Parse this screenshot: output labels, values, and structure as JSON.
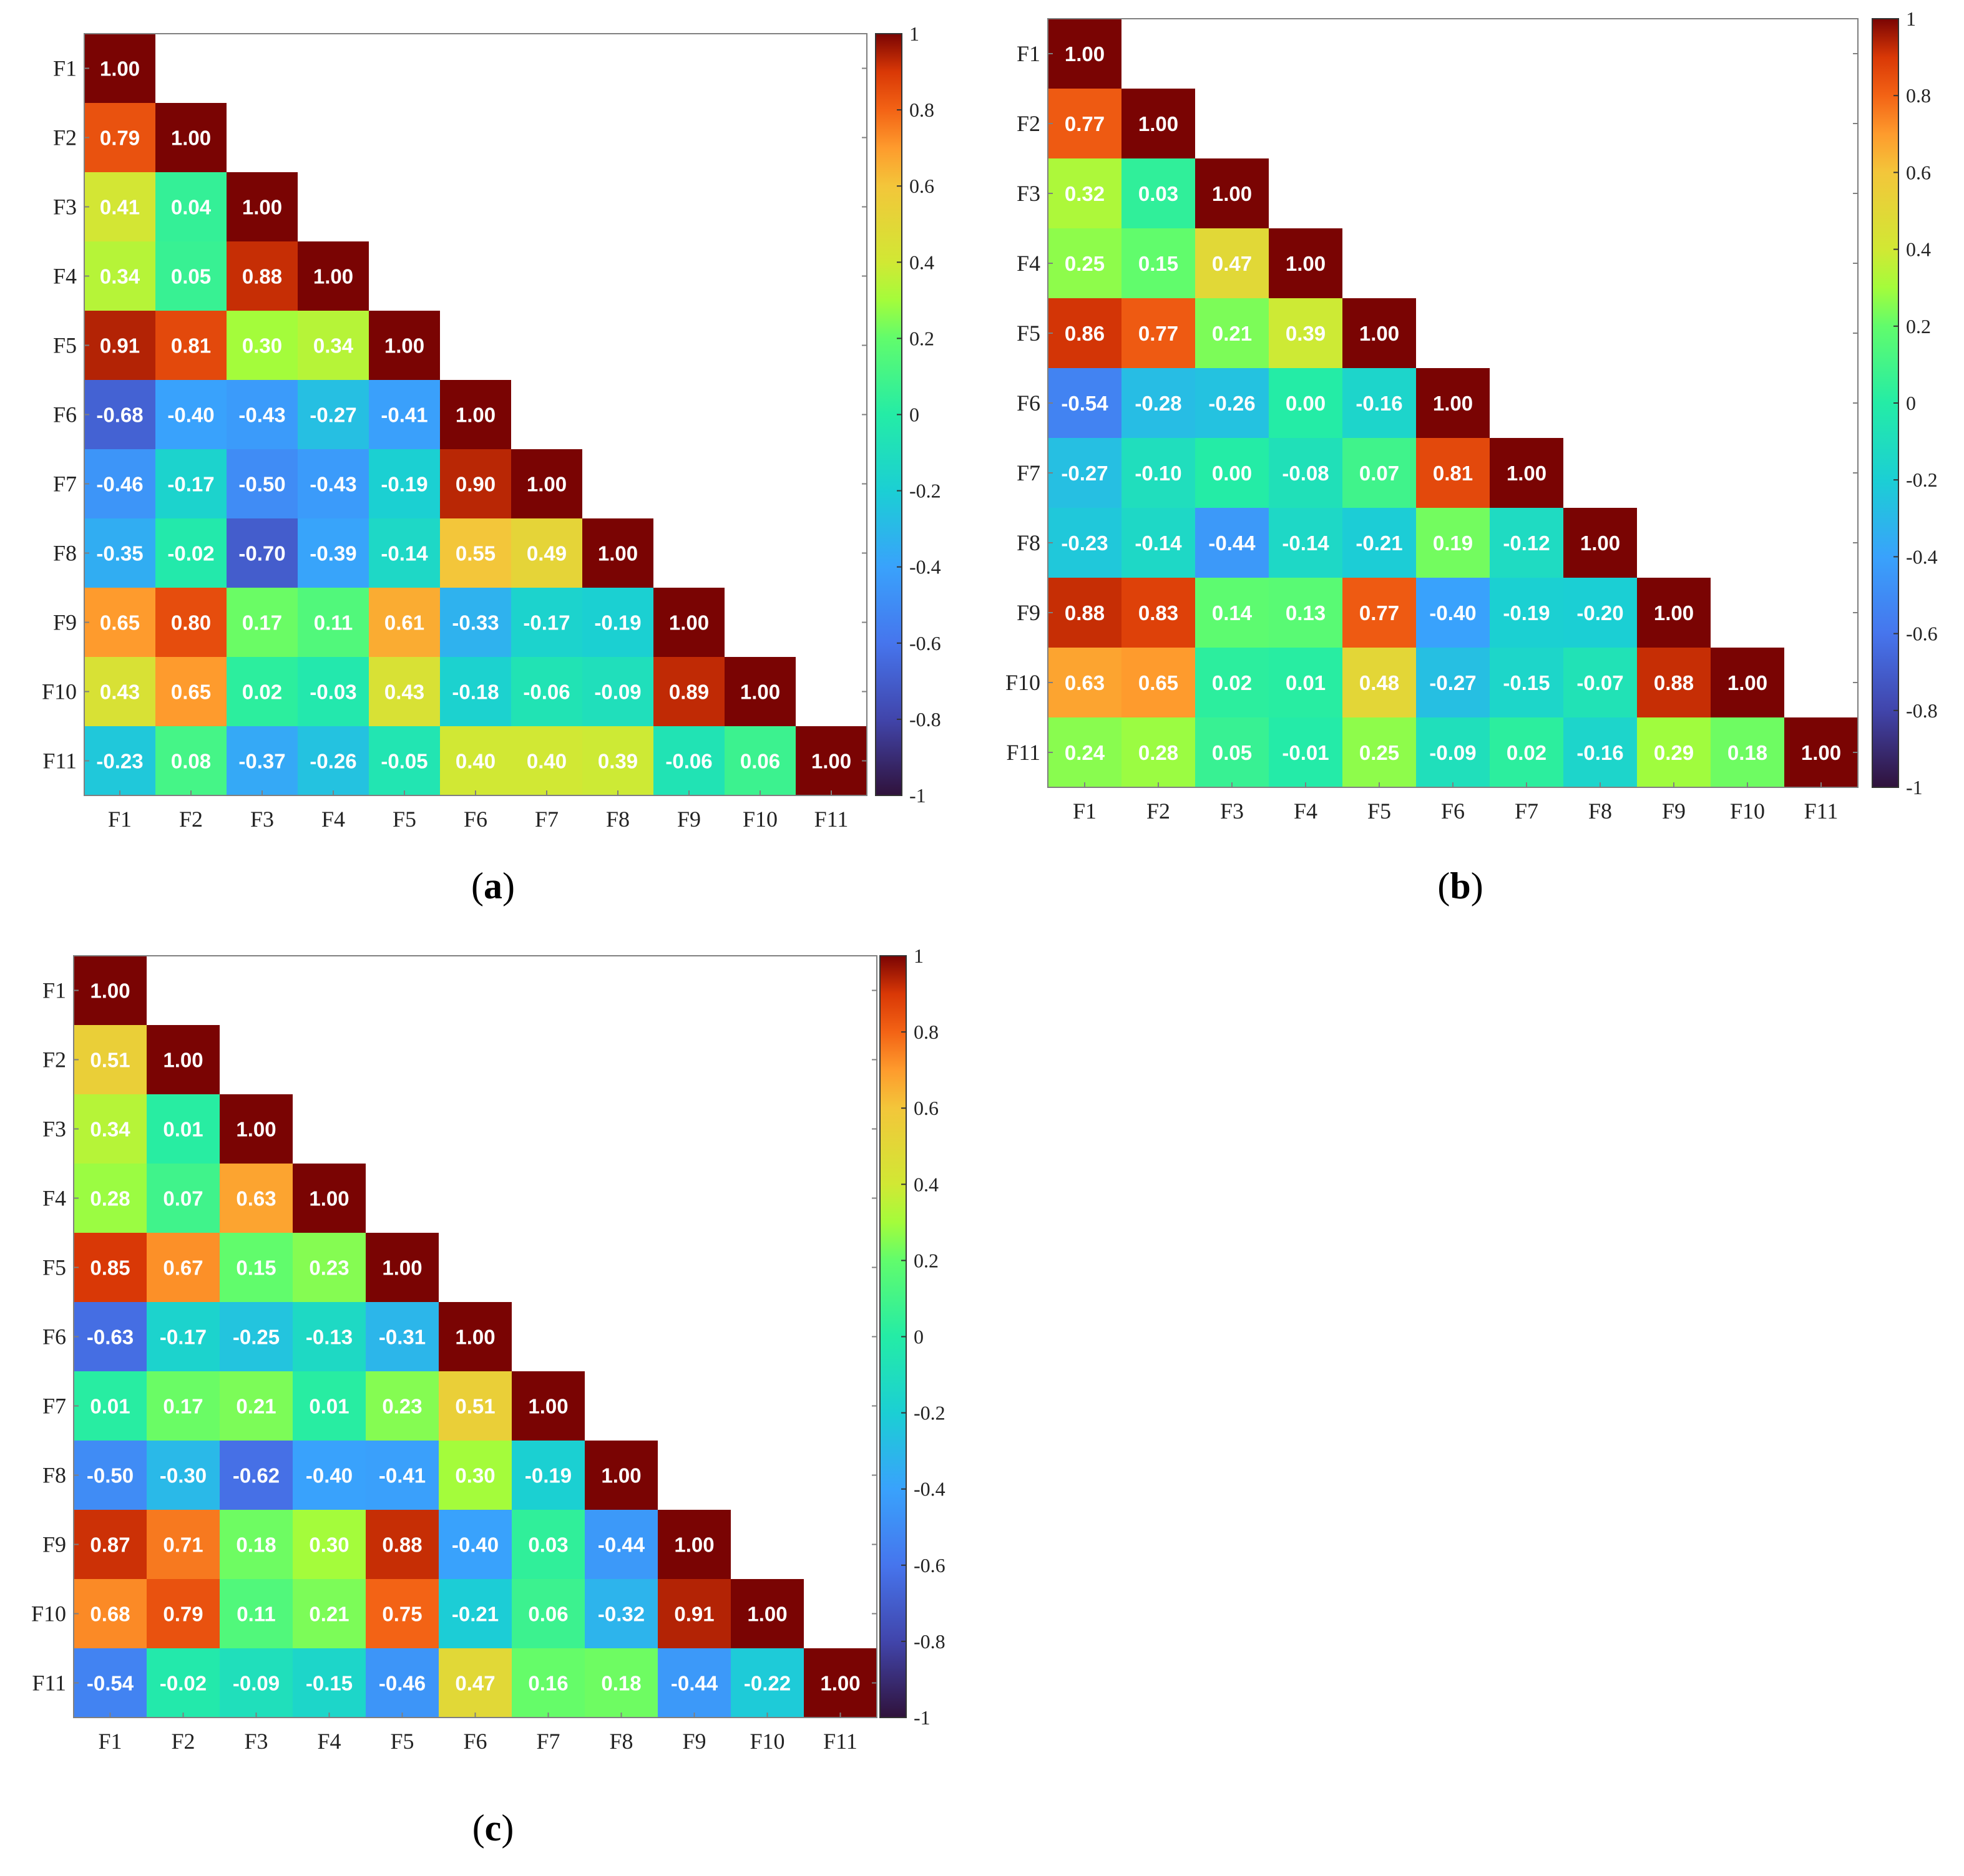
{
  "chart_data": [
    {
      "type": "heatmap",
      "panel_label": "a",
      "variables": [
        "F1",
        "F2",
        "F3",
        "F4",
        "F5",
        "F6",
        "F7",
        "F8",
        "F9",
        "F10",
        "F11"
      ],
      "matrix_lower": [
        [
          "1.00"
        ],
        [
          "0.79",
          "1.00"
        ],
        [
          "0.41",
          "0.04",
          "1.00"
        ],
        [
          "0.34",
          "0.05",
          "0.88",
          "1.00"
        ],
        [
          "0.91",
          "0.81",
          "0.30",
          "0.34",
          "1.00"
        ],
        [
          "-0.68",
          "-0.40",
          "-0.43",
          "-0.27",
          "-0.41",
          "1.00"
        ],
        [
          "-0.46",
          "-0.17",
          "-0.50",
          "-0.43",
          "-0.19",
          "0.90",
          "1.00"
        ],
        [
          "-0.35",
          "-0.02",
          "-0.70",
          "-0.39",
          "-0.14",
          "0.55",
          "0.49",
          "1.00"
        ],
        [
          "0.65",
          "0.80",
          "0.17",
          "0.11",
          "0.61",
          "-0.33",
          "-0.17",
          "-0.19",
          "1.00"
        ],
        [
          "0.43",
          "0.65",
          "0.02",
          "-0.03",
          "0.43",
          "-0.18",
          "-0.06",
          "-0.09",
          "0.89",
          "1.00"
        ],
        [
          "-0.23",
          "0.08",
          "-0.37",
          "-0.26",
          "-0.05",
          "0.40",
          "0.40",
          "0.39",
          "-0.06",
          "0.06",
          "1.00"
        ]
      ],
      "colorbar_ticks": [
        "1",
        "0.8",
        "0.6",
        "0.4",
        "0.2",
        "0",
        "-0.2",
        "-0.4",
        "-0.6",
        "-0.8",
        "-1"
      ],
      "clim": [
        -1,
        1
      ],
      "colormap": "jet-like (dark blue → cyan → green → yellow → orange → dark red)"
    },
    {
      "type": "heatmap",
      "panel_label": "b",
      "variables": [
        "F1",
        "F2",
        "F3",
        "F4",
        "F5",
        "F6",
        "F7",
        "F8",
        "F9",
        "F10",
        "F11"
      ],
      "matrix_lower": [
        [
          "1.00"
        ],
        [
          "0.77",
          "1.00"
        ],
        [
          "0.32",
          "0.03",
          "1.00"
        ],
        [
          "0.25",
          "0.15",
          "0.47",
          "1.00"
        ],
        [
          "0.86",
          "0.77",
          "0.21",
          "0.39",
          "1.00"
        ],
        [
          "-0.54",
          "-0.28",
          "-0.26",
          "0.00",
          "-0.16",
          "1.00"
        ],
        [
          "-0.27",
          "-0.10",
          "0.00",
          "-0.08",
          "0.07",
          "0.81",
          "1.00"
        ],
        [
          "-0.23",
          "-0.14",
          "-0.44",
          "-0.14",
          "-0.21",
          "0.19",
          "-0.12",
          "1.00"
        ],
        [
          "0.88",
          "0.83",
          "0.14",
          "0.13",
          "0.77",
          "-0.40",
          "-0.19",
          "-0.20",
          "1.00"
        ],
        [
          "0.63",
          "0.65",
          "0.02",
          "0.01",
          "0.48",
          "-0.27",
          "-0.15",
          "-0.07",
          "0.88",
          "1.00"
        ],
        [
          "0.24",
          "0.28",
          "0.05",
          "-0.01",
          "0.25",
          "-0.09",
          "0.02",
          "-0.16",
          "0.29",
          "0.18",
          "1.00"
        ]
      ],
      "colorbar_ticks": [
        "1",
        "0.8",
        "0.6",
        "0.4",
        "0.2",
        "0",
        "-0.2",
        "-0.4",
        "-0.6",
        "-0.8",
        "-1"
      ],
      "clim": [
        -1,
        1
      ],
      "colormap": "jet-like (dark blue → cyan → green → yellow → orange → dark red)"
    },
    {
      "type": "heatmap",
      "panel_label": "c",
      "variables": [
        "F1",
        "F2",
        "F3",
        "F4",
        "F5",
        "F6",
        "F7",
        "F8",
        "F9",
        "F10",
        "F11"
      ],
      "matrix_lower": [
        [
          "1.00"
        ],
        [
          "0.51",
          "1.00"
        ],
        [
          "0.34",
          "0.01",
          "1.00"
        ],
        [
          "0.28",
          "0.07",
          "0.63",
          "1.00"
        ],
        [
          "0.85",
          "0.67",
          "0.15",
          "0.23",
          "1.00"
        ],
        [
          "-0.63",
          "-0.17",
          "-0.25",
          "-0.13",
          "-0.31",
          "1.00"
        ],
        [
          "0.01",
          "0.17",
          "0.21",
          "0.01",
          "0.23",
          "0.51",
          "1.00"
        ],
        [
          "-0.50",
          "-0.30",
          "-0.62",
          "-0.40",
          "-0.41",
          "0.30",
          "-0.19",
          "1.00"
        ],
        [
          "0.87",
          "0.71",
          "0.18",
          "0.30",
          "0.88",
          "-0.40",
          "0.03",
          "-0.44",
          "1.00"
        ],
        [
          "0.68",
          "0.79",
          "0.11",
          "0.21",
          "0.75",
          "-0.21",
          "0.06",
          "-0.32",
          "0.91",
          "1.00"
        ],
        [
          "-0.54",
          "-0.02",
          "-0.09",
          "-0.15",
          "-0.46",
          "0.47",
          "0.16",
          "0.18",
          "-0.44",
          "-0.22",
          "1.00"
        ]
      ],
      "colorbar_ticks": [
        "1",
        "0.8",
        "0.6",
        "0.4",
        "0.2",
        "0",
        "-0.2",
        "-0.4",
        "-0.6",
        "-0.8",
        "-1"
      ],
      "clim": [
        -1,
        1
      ],
      "colormap": "jet-like (dark blue → cyan → green → yellow → orange → dark red)"
    }
  ]
}
